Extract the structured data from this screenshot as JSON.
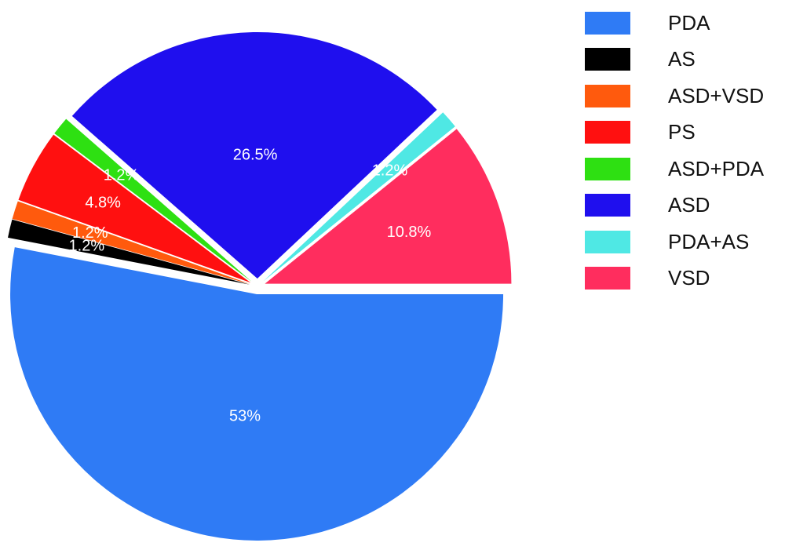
{
  "chart_data": {
    "type": "pie",
    "slices": [
      {
        "label": "PDA",
        "value": 53,
        "value_label": "53%",
        "color": "#2F7BF5",
        "label_color": "#ffffff"
      },
      {
        "label": "AS",
        "value": 1.2,
        "value_label": "1.2%",
        "color": "#000000",
        "label_color": "#ffffff"
      },
      {
        "label": "ASD+VSD",
        "value": 1.2,
        "value_label": "1.2%",
        "color": "#FF5A0D",
        "label_color": "#ffe0c8"
      },
      {
        "label": "PS",
        "value": 4.8,
        "value_label": "4.8%",
        "color": "#FF1010",
        "label_color": "#ffe0e0"
      },
      {
        "label": "ASD+PDA",
        "value": 1.2,
        "value_label": "1.2%",
        "color": "#2EE012",
        "label_color": "#d8ffd0"
      },
      {
        "label": "ASD",
        "value": 26.5,
        "value_label": "26.5%",
        "color": "#1F0FEE",
        "label_color": "#ffffff"
      },
      {
        "label": "PDA+AS",
        "value": 1.2,
        "value_label": "1.2%",
        "color": "#4FE8E4",
        "label_color": "#d0fffe"
      },
      {
        "label": "VSD",
        "value": 10.8,
        "value_label": "10.8%",
        "color": "#FF2D5E",
        "label_color": "#ffffff"
      }
    ],
    "start_angle_deg": 0,
    "direction": "clockwise",
    "exploded": true,
    "legend_position": "right"
  }
}
